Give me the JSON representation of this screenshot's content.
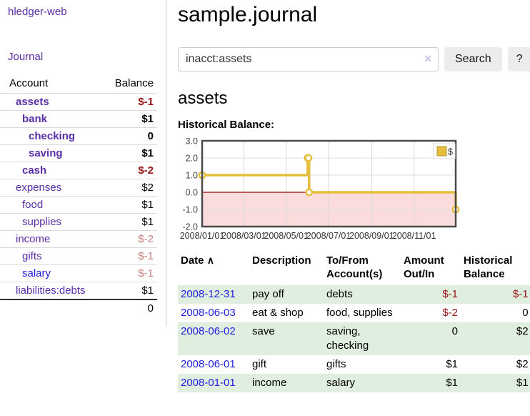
{
  "colors": {
    "link_purple": "#5a2ea6",
    "link_blue": "#2222dd",
    "negative_strong": "#971414",
    "negative_soft": "#c47e7e",
    "row_stripe_green": "#e0eee0",
    "chart_gold": "#e5be3d",
    "chart_gold_border": "#b3912a",
    "negative_region_pink": "#fbdcdc",
    "zero_line_red": "#a40303",
    "chart_border_gray": "#4a4a4a"
  },
  "app": {
    "brand": "hledger-web"
  },
  "sidebar": {
    "journal_link": "Journal",
    "accounts": {
      "col_account": "Account",
      "col_balance": "Balance",
      "rows": [
        {
          "name": "assets",
          "balance": "$-1",
          "depth": 1,
          "bold": true
        },
        {
          "name": "bank",
          "balance": "$1",
          "depth": 2,
          "bold": true
        },
        {
          "name": "checking",
          "balance": "0",
          "depth": 3,
          "bold": true
        },
        {
          "name": "saving",
          "balance": "$1",
          "depth": 3,
          "bold": true
        },
        {
          "name": "cash",
          "balance": "$-2",
          "depth": 2,
          "bold": true
        },
        {
          "name": "expenses",
          "balance": "$2",
          "depth": 1,
          "bold": false
        },
        {
          "name": "food",
          "balance": "$1",
          "depth": 2,
          "bold": false
        },
        {
          "name": "supplies",
          "balance": "$1",
          "depth": 2,
          "bold": false
        },
        {
          "name": "income",
          "balance": "$-2",
          "depth": 1,
          "bold": false
        },
        {
          "name": "gifts",
          "balance": "$-1",
          "depth": 2,
          "bold": false
        },
        {
          "name": "salary",
          "balance": "$-1",
          "depth": 2,
          "bold": false,
          "unvisited": true
        },
        {
          "name": "liabilities:debts",
          "balance": "$1",
          "depth": 1,
          "bold": false
        }
      ],
      "total": "0"
    }
  },
  "main": {
    "title": "sample.journal",
    "search": {
      "value": "inacct:assets",
      "clear_icon": "✕",
      "search_button": "Search",
      "help_button": "?"
    },
    "account_heading": "assets",
    "chart_title": "Historical Balance:"
  },
  "chart_data": {
    "type": "line",
    "step": true,
    "title": "Historical Balance:",
    "legend": {
      "label": "$",
      "position": "top-right"
    },
    "x_range": [
      "2008-01-01",
      "2008-12-31"
    ],
    "ylim": [
      -2,
      3
    ],
    "y_ticks": [
      "3.0",
      "2.0",
      "1.0",
      "0.0",
      "-1.0",
      "-2.0"
    ],
    "x_ticks": [
      "2008/01/01",
      "2008/03/01",
      "2008/05/01",
      "2008/07/01",
      "2008/09/01",
      "2008/11/01"
    ],
    "series": [
      {
        "name": "$",
        "color": "#e5be3d",
        "points": [
          [
            "2008-01-01",
            1
          ],
          [
            "2008-06-01",
            2
          ],
          [
            "2008-06-02",
            2
          ],
          [
            "2008-06-03",
            0
          ],
          [
            "2008-12-31",
            -1
          ]
        ]
      }
    ],
    "grid": true,
    "negative_region_shaded": true
  },
  "register": {
    "headers": {
      "date": "Date",
      "sort_icon": "∧",
      "description": "Description",
      "accounts": "To/From Account(s)",
      "amount": "Amount Out/In",
      "balance": "Historical Balance"
    },
    "rows": [
      {
        "date": "2008-12-31",
        "description": "pay off",
        "accounts": "debts",
        "amount": "$-1",
        "balance": "$-1"
      },
      {
        "date": "2008-06-03",
        "description": "eat & shop",
        "accounts": "food, supplies",
        "amount": "$-2",
        "balance": "0"
      },
      {
        "date": "2008-06-02",
        "description": "save",
        "accounts": "saving, checking",
        "amount": "0",
        "balance": "$2"
      },
      {
        "date": "2008-06-01",
        "description": "gift",
        "accounts": "gifts",
        "amount": "$1",
        "balance": "$2"
      },
      {
        "date": "2008-01-01",
        "description": "income",
        "accounts": "salary",
        "amount": "$1",
        "balance": "$1"
      }
    ]
  }
}
